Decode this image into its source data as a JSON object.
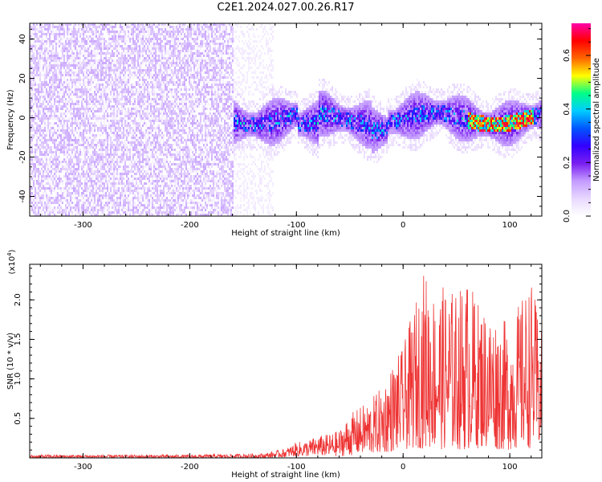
{
  "title": "C2E1.2024.027.00.26.R17",
  "chart_data": [
    {
      "type": "heatmap",
      "xlabel": "Height of straight line (km)",
      "ylabel": "Frequency (Hz)",
      "xlim": [
        -350,
        130
      ],
      "ylim": [
        -50,
        48
      ],
      "x_ticks": [
        -300,
        -200,
        -100,
        0,
        100
      ],
      "x_tick_labels": [
        "-300",
        "-200",
        "-100",
        "0",
        "100"
      ],
      "y_ticks": [
        -40,
        -20,
        0,
        20,
        40
      ],
      "y_tick_labels": [
        "-40",
        "-20",
        "0",
        "20",
        "40"
      ],
      "colorbar": {
        "label": "Normalized spectral amplitude",
        "range": [
          0,
          0.72
        ],
        "ticks": [
          0.0,
          0.2,
          0.4,
          0.6
        ],
        "tick_labels": [
          "0.0",
          "0.2",
          "0.4",
          "0.6"
        ],
        "colors": [
          "#ffffff",
          "#e8d8ff",
          "#c49cff",
          "#7a1ff0",
          "#3300ff",
          "#0055ff",
          "#00ccff",
          "#00ff88",
          "#ffff00",
          "#ff6600",
          "#ff0000",
          "#ff00aa"
        ]
      },
      "regions": [
        {
          "x_range": [
            -350,
            -160
          ],
          "freq_band": [
            -50,
            48
          ],
          "amplitude_range": [
            0.0,
            0.1
          ],
          "description_level": "noise"
        },
        {
          "x_range": [
            -160,
            -120
          ],
          "freq_band": [
            -50,
            48
          ],
          "amplitude_range": [
            0.0,
            0.05
          ],
          "description_level": "faint"
        },
        {
          "x_range": [
            -160,
            130
          ],
          "freq_band": [
            -12,
            12
          ],
          "amplitude_range": [
            0.1,
            0.4
          ],
          "description_level": "signal"
        },
        {
          "x_range": [
            60,
            120
          ],
          "freq_band": [
            -3,
            4
          ],
          "amplitude_range": [
            0.4,
            0.72
          ],
          "description_level": "peak"
        }
      ]
    },
    {
      "type": "line",
      "xlabel": "Height of straight line (km)",
      "ylabel": "SNR (10 * v/v)",
      "exponent_label": "(x10",
      "exponent_sup": "4",
      "exponent_close": ")",
      "xlim": [
        -350,
        130
      ],
      "ylim": [
        0,
        2.45
      ],
      "x_ticks": [
        -300,
        -200,
        -100,
        0,
        100
      ],
      "x_tick_labels": [
        "-300",
        "-200",
        "-100",
        "0",
        "100"
      ],
      "y_ticks": [
        0.5,
        1.0,
        1.5,
        2.0
      ],
      "y_tick_labels": [
        "0.5",
        "1.0",
        "1.5",
        "2.0"
      ],
      "color": "#ee3333",
      "series": [
        {
          "x": [
            -350,
            -300,
            -250,
            -200,
            -160,
            -130,
            -110,
            -100,
            -90,
            -80,
            -70,
            -60,
            -50,
            -40,
            -30,
            -20,
            -10,
            0,
            10,
            20,
            30,
            40,
            50,
            60,
            70,
            80,
            90,
            100,
            110,
            120,
            130
          ],
          "y_low": [
            0.0,
            0.0,
            0.0,
            0.0,
            0.0,
            0.0,
            0.01,
            0.02,
            0.02,
            0.03,
            0.02,
            0.02,
            0.03,
            0.05,
            0.05,
            0.06,
            0.08,
            0.1,
            0.12,
            0.12,
            0.12,
            0.1,
            0.1,
            0.1,
            0.12,
            0.12,
            0.1,
            0.1,
            0.12,
            0.12,
            0.12
          ],
          "y_high": [
            0.04,
            0.04,
            0.04,
            0.04,
            0.05,
            0.06,
            0.12,
            0.2,
            0.22,
            0.28,
            0.3,
            0.35,
            0.55,
            0.65,
            0.75,
            0.9,
            1.2,
            1.4,
            1.9,
            2.4,
            2.1,
            2.2,
            2.1,
            2.3,
            2.0,
            1.9,
            1.8,
            1.7,
            2.0,
            2.25,
            1.6
          ]
        }
      ]
    }
  ]
}
